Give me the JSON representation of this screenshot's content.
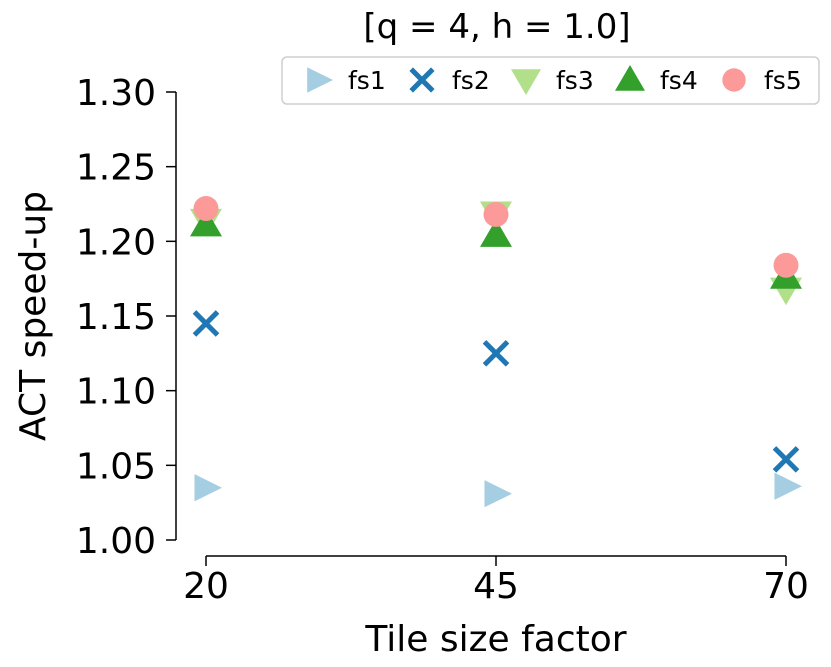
{
  "chart_data": {
    "type": "scatter",
    "title": "[q = 4, h = 1.0]",
    "xlabel": "Tile size factor",
    "ylabel": "ACT speed-up",
    "categories": [
      "20",
      "45",
      "70"
    ],
    "ylim": [
      1.0,
      1.3
    ],
    "yticks": [
      "1.00",
      "1.05",
      "1.10",
      "1.15",
      "1.20",
      "1.25",
      "1.30"
    ],
    "grid": false,
    "legend_placement": "top-right",
    "series": [
      {
        "name": "fs1",
        "marker": "triangle-right",
        "color": "#a6cee3",
        "values": [
          1.035,
          1.031,
          1.036
        ]
      },
      {
        "name": "fs2",
        "marker": "x",
        "color": "#1f78b4",
        "values": [
          1.145,
          1.125,
          1.054
        ]
      },
      {
        "name": "fs3",
        "marker": "triangle-down",
        "color": "#b2df8a",
        "values": [
          1.214,
          1.219,
          1.168
        ]
      },
      {
        "name": "fs4",
        "marker": "triangle-up",
        "color": "#33a02c",
        "values": [
          1.211,
          1.204,
          1.176
        ]
      },
      {
        "name": "fs5",
        "marker": "circle",
        "color": "#fb9a99",
        "values": [
          1.222,
          1.218,
          1.184
        ]
      }
    ]
  }
}
